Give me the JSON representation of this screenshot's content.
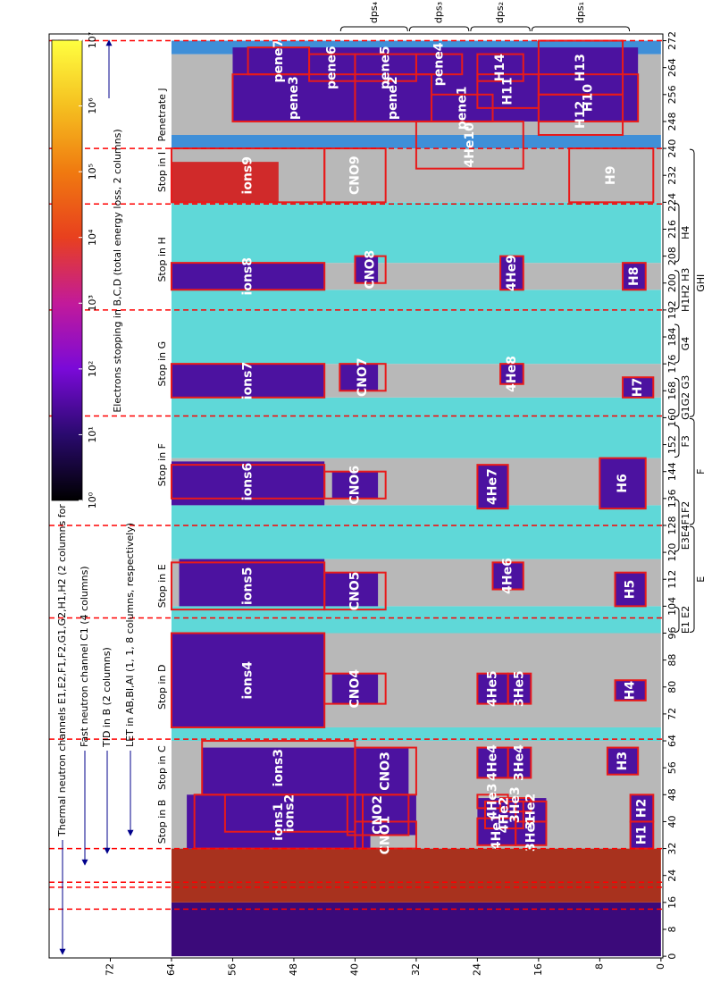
{
  "chart_data": {
    "type": "heatmap",
    "xlim": [
      -0.5,
      274
    ],
    "ylim": [
      -0.25,
      80
    ],
    "xticks": [
      0,
      8,
      16,
      24,
      32,
      40,
      48,
      56,
      64,
      72,
      80,
      88,
      96,
      104,
      112,
      120,
      128,
      136,
      144,
      152,
      160,
      168,
      176,
      184,
      192,
      200,
      208,
      216,
      224,
      232,
      240,
      248,
      256,
      264,
      272
    ],
    "yticks": [
      0,
      8,
      16,
      24,
      32,
      40,
      48,
      56,
      64,
      72
    ],
    "panels": [
      {
        "x": [
          0,
          16
        ],
        "y": [
          0,
          64
        ],
        "color": "#3b0a7a"
      },
      {
        "x": [
          16,
          32
        ],
        "y": [
          0,
          64
        ],
        "color": "#a8321e"
      },
      {
        "x": [
          32,
          64
        ],
        "y": [
          0,
          64
        ],
        "color": "#b8b8b8"
      },
      {
        "x": [
          64,
          68
        ],
        "y": [
          0,
          64
        ],
        "color": "#5fd8d8"
      },
      {
        "x": [
          68,
          96
        ],
        "y": [
          0,
          64
        ],
        "color": "#b8b8b8"
      },
      {
        "x": [
          96,
          104
        ],
        "y": [
          0,
          64
        ],
        "color": "#5fd8d8"
      },
      {
        "x": [
          104,
          118
        ],
        "y": [
          0,
          64
        ],
        "color": "#b8b8b8"
      },
      {
        "x": [
          118,
          134
        ],
        "y": [
          0,
          64
        ],
        "color": "#5fd8d8"
      },
      {
        "x": [
          134,
          148
        ],
        "y": [
          0,
          64
        ],
        "color": "#b8b8b8"
      },
      {
        "x": [
          148,
          166
        ],
        "y": [
          0,
          64
        ],
        "color": "#5fd8d8"
      },
      {
        "x": [
          166,
          176
        ],
        "y": [
          0,
          64
        ],
        "color": "#b8b8b8"
      },
      {
        "x": [
          176,
          198
        ],
        "y": [
          0,
          64
        ],
        "color": "#5fd8d8"
      },
      {
        "x": [
          198,
          206
        ],
        "y": [
          0,
          64
        ],
        "color": "#b8b8b8"
      },
      {
        "x": [
          206,
          224
        ],
        "y": [
          0,
          64
        ],
        "color": "#5fd8d8"
      },
      {
        "x": [
          224,
          240
        ],
        "y": [
          0,
          64
        ],
        "color": "#b8b8b8"
      },
      {
        "x": [
          240,
          244
        ],
        "y": [
          0,
          64
        ],
        "color": "#3f8fd8"
      },
      {
        "x": [
          244,
          268
        ],
        "y": [
          0,
          64
        ],
        "color": "#b8b8b8"
      },
      {
        "x": [
          268,
          272
        ],
        "y": [
          0,
          64
        ],
        "color": "#3f8fd8"
      },
      {
        "x": [
          224,
          236
        ],
        "y": [
          50,
          64
        ],
        "color": "#d02a2a"
      },
      {
        "x": [
          32,
          48
        ],
        "y": [
          38,
          62
        ],
        "color": "#4c12a0"
      },
      {
        "x": [
          48,
          62
        ],
        "y": [
          40,
          60
        ],
        "color": "#4c12a0"
      },
      {
        "x": [
          68,
          96
        ],
        "y": [
          44,
          64
        ],
        "color": "#4c12a0"
      },
      {
        "x": [
          104,
          118
        ],
        "y": [
          44,
          63
        ],
        "color": "#4c12a0"
      },
      {
        "x": [
          134,
          147
        ],
        "y": [
          44,
          64
        ],
        "color": "#4c12a0"
      },
      {
        "x": [
          166,
          176
        ],
        "y": [
          44,
          64
        ],
        "color": "#4c12a0"
      },
      {
        "x": [
          198,
          206
        ],
        "y": [
          44,
          64
        ],
        "color": "#4c12a0"
      },
      {
        "x": [
          36,
          48
        ],
        "y": [
          32,
          41
        ],
        "color": "#4c12a0"
      },
      {
        "x": [
          48,
          62
        ],
        "y": [
          33,
          40
        ],
        "color": "#4c12a0"
      },
      {
        "x": [
          75,
          84
        ],
        "y": [
          37,
          43
        ],
        "color": "#4c12a0"
      },
      {
        "x": [
          104,
          114
        ],
        "y": [
          37,
          44
        ],
        "color": "#4c12a0"
      },
      {
        "x": [
          136,
          144
        ],
        "y": [
          37,
          43
        ],
        "color": "#4c12a0"
      },
      {
        "x": [
          168,
          176
        ],
        "y": [
          37,
          42
        ],
        "color": "#4c12a0"
      },
      {
        "x": [
          200,
          208
        ],
        "y": [
          37,
          40
        ],
        "color": "#4c12a0"
      },
      {
        "x": [
          32,
          48
        ],
        "y": [
          1,
          4
        ],
        "color": "#4c12a0"
      },
      {
        "x": [
          54,
          62
        ],
        "y": [
          3,
          7
        ],
        "color": "#4c12a0"
      },
      {
        "x": [
          76,
          82
        ],
        "y": [
          2,
          6
        ],
        "color": "#4c12a0"
      },
      {
        "x": [
          104,
          114
        ],
        "y": [
          2,
          6
        ],
        "color": "#4c12a0"
      },
      {
        "x": [
          133,
          148
        ],
        "y": [
          2,
          8
        ],
        "color": "#4c12a0"
      },
      {
        "x": [
          166,
          172
        ],
        "y": [
          1,
          5
        ],
        "color": "#4c12a0"
      },
      {
        "x": [
          198,
          206
        ],
        "y": [
          2,
          5
        ],
        "color": "#4c12a0"
      },
      {
        "x": [
          248,
          270
        ],
        "y": [
          3,
          56
        ],
        "color": "#4c12a0"
      },
      {
        "x": [
          33,
          47
        ],
        "y": [
          15,
          24
        ],
        "color": "#4c12a0"
      },
      {
        "x": [
          53,
          62
        ],
        "y": [
          17,
          24
        ],
        "color": "#4c12a0"
      },
      {
        "x": [
          75,
          84
        ],
        "y": [
          17,
          24
        ],
        "color": "#4c12a0"
      },
      {
        "x": [
          109,
          117
        ],
        "y": [
          18,
          22
        ],
        "color": "#4c12a0"
      },
      {
        "x": [
          133,
          146
        ],
        "y": [
          20,
          24
        ],
        "color": "#4c12a0"
      },
      {
        "x": [
          170,
          176
        ],
        "y": [
          18,
          21
        ],
        "color": "#4c12a0"
      },
      {
        "x": [
          198,
          208
        ],
        "y": [
          18,
          21
        ],
        "color": "#4c12a0"
      }
    ],
    "dividers": [
      14,
      20.5,
      22,
      32,
      64.5,
      100.5,
      128,
      160.5,
      192,
      223.5,
      240,
      272
    ],
    "divider_color": "#ff0000",
    "box_color": "#e81a1a",
    "boxes": [
      {
        "label": "ions1",
        "x": [
          32,
          48
        ],
        "y": [
          39,
          61
        ]
      },
      {
        "label": "ions2",
        "x": [
          37,
          48
        ],
        "y": [
          40,
          57
        ]
      },
      {
        "label": "ions3",
        "x": [
          48,
          64
        ],
        "y": [
          40,
          60
        ]
      },
      {
        "label": "CNO1",
        "x": [
          32,
          40
        ],
        "y": [
          32,
          40
        ]
      },
      {
        "label": "CNO2",
        "x": [
          36,
          48
        ],
        "y": [
          33,
          41
        ]
      },
      {
        "label": "CNO3",
        "x": [
          48,
          62
        ],
        "y": [
          32,
          40
        ]
      },
      {
        "label": "4He1",
        "x": [
          33,
          41
        ],
        "y": [
          19,
          24
        ]
      },
      {
        "label": "4He2",
        "x": [
          38,
          46
        ],
        "y": [
          18,
          23
        ]
      },
      {
        "label": "3He1",
        "x": [
          33,
          40
        ],
        "y": [
          15,
          19
        ]
      },
      {
        "label": "3He2",
        "x": [
          40,
          46
        ],
        "y": [
          15,
          19
        ]
      },
      {
        "label": "3He3",
        "x": [
          43,
          47
        ],
        "y": [
          17,
          21
        ]
      },
      {
        "label": "4He3",
        "x": [
          44,
          48
        ],
        "y": [
          20,
          24
        ]
      },
      {
        "label": "4He4",
        "x": [
          53,
          62
        ],
        "y": [
          20,
          24
        ]
      },
      {
        "label": "3He4",
        "x": [
          53,
          62
        ],
        "y": [
          17,
          20
        ]
      },
      {
        "label": "H1",
        "x": [
          32,
          40
        ],
        "y": [
          1,
          4
        ]
      },
      {
        "label": "H2",
        "x": [
          40,
          48
        ],
        "y": [
          1,
          4
        ]
      },
      {
        "label": "H3",
        "x": [
          54,
          62
        ],
        "y": [
          3,
          7
        ]
      },
      {
        "label": "ions4",
        "x": [
          68,
          96
        ],
        "y": [
          44,
          64
        ]
      },
      {
        "label": "CNO4",
        "x": [
          75,
          84
        ],
        "y": [
          36,
          44
        ]
      },
      {
        "label": "4He5",
        "x": [
          75,
          84
        ],
        "y": [
          20,
          24
        ]
      },
      {
        "label": "3He5",
        "x": [
          75,
          84
        ],
        "y": [
          17,
          20
        ]
      },
      {
        "label": "H4",
        "x": [
          76,
          82
        ],
        "y": [
          2,
          6
        ]
      },
      {
        "label": "ions5",
        "x": [
          103,
          117
        ],
        "y": [
          44,
          64
        ]
      },
      {
        "label": "CNO5",
        "x": [
          103,
          114
        ],
        "y": [
          36,
          44
        ]
      },
      {
        "label": "4He6",
        "x": [
          109,
          117
        ],
        "y": [
          18,
          22
        ]
      },
      {
        "label": "H5",
        "x": [
          104,
          114
        ],
        "y": [
          2,
          6
        ]
      },
      {
        "label": "ions6",
        "x": [
          136,
          146
        ],
        "y": [
          44,
          64
        ]
      },
      {
        "label": "CNO6",
        "x": [
          136,
          144
        ],
        "y": [
          36,
          44
        ]
      },
      {
        "label": "4He7",
        "x": [
          133,
          146
        ],
        "y": [
          20,
          24
        ]
      },
      {
        "label": "H6",
        "x": [
          133,
          148
        ],
        "y": [
          2,
          8
        ]
      },
      {
        "label": "ions7",
        "x": [
          166,
          176
        ],
        "y": [
          44,
          64
        ]
      },
      {
        "label": "CNO7",
        "x": [
          168,
          176
        ],
        "y": [
          36,
          42
        ]
      },
      {
        "label": "4He8",
        "x": [
          170,
          176
        ],
        "y": [
          18,
          21
        ]
      },
      {
        "label": "H7",
        "x": [
          166,
          172
        ],
        "y": [
          1,
          5
        ]
      },
      {
        "label": "ions8",
        "x": [
          198,
          206
        ],
        "y": [
          44,
          64
        ]
      },
      {
        "label": "CNO8",
        "x": [
          200,
          208
        ],
        "y": [
          36,
          40
        ]
      },
      {
        "label": "4He9",
        "x": [
          198,
          208
        ],
        "y": [
          18,
          21
        ]
      },
      {
        "label": "H8",
        "x": [
          198,
          206
        ],
        "y": [
          2,
          5
        ]
      },
      {
        "label": "ions9",
        "x": [
          224,
          240
        ],
        "y": [
          44,
          64
        ]
      },
      {
        "label": "CNO9",
        "x": [
          224,
          240
        ],
        "y": [
          36,
          44
        ]
      },
      {
        "label": "4He10",
        "x": [
          234,
          248
        ],
        "y": [
          18,
          32
        ]
      },
      {
        "label": "H9",
        "x": [
          224,
          240
        ],
        "y": [
          1,
          12
        ]
      },
      {
        "label": "pene1",
        "x": [
          248,
          256
        ],
        "y": [
          22,
          30
        ]
      },
      {
        "label": "pene2",
        "x": [
          248,
          262
        ],
        "y": [
          30,
          40
        ]
      },
      {
        "label": "pene3",
        "x": [
          248,
          262
        ],
        "y": [
          40,
          56
        ]
      },
      {
        "label": "pene4",
        "x": [
          262,
          268
        ],
        "y": [
          26,
          32
        ]
      },
      {
        "label": "pene5",
        "x": [
          260,
          268
        ],
        "y": [
          32,
          40
        ]
      },
      {
        "label": "pene6",
        "x": [
          260,
          268
        ],
        "y": [
          40,
          46
        ]
      },
      {
        "label": "pene7",
        "x": [
          262,
          270
        ],
        "y": [
          46,
          54
        ]
      },
      {
        "label": "H10",
        "x": [
          248,
          262
        ],
        "y": [
          3,
          16
        ]
      },
      {
        "label": "H11",
        "x": [
          252,
          262
        ],
        "y": [
          16,
          24
        ]
      },
      {
        "label": "H12",
        "x": [
          244,
          256
        ],
        "y": [
          5,
          16
        ]
      },
      {
        "label": "H13",
        "x": [
          256,
          272
        ],
        "y": [
          5,
          16
        ]
      },
      {
        "label": "H14",
        "x": [
          260,
          268
        ],
        "y": [
          18,
          24
        ]
      }
    ],
    "stop_labels": [
      {
        "label": "Stop in B",
        "x": 40
      },
      {
        "label": "Stop in C",
        "x": 56
      },
      {
        "label": "Stop in D",
        "x": 80
      },
      {
        "label": "Stop in E",
        "x": 110
      },
      {
        "label": "Stop in F",
        "x": 146
      },
      {
        "label": "Stop in G",
        "x": 176
      },
      {
        "label": "Stop in H",
        "x": 207
      },
      {
        "label": "Stop in I",
        "x": 233
      },
      {
        "label": "Penetrate J",
        "x": 250
      }
    ],
    "channel_groups": [
      {
        "label": "E1 E2",
        "x": [
          96,
          104
        ]
      },
      {
        "label": "E3E4F1F2",
        "x": [
          120,
          136
        ]
      },
      {
        "label": "F3",
        "x": [
          148,
          158
        ]
      },
      {
        "label": "G1G2 G3",
        "x": [
          160,
          172
        ]
      },
      {
        "label": "G4",
        "x": [
          176,
          188
        ]
      },
      {
        "label": "H1H2 H3",
        "x": [
          192,
          204
        ]
      },
      {
        "label": "H4",
        "x": [
          206,
          224
        ]
      }
    ],
    "detector_groups": [
      {
        "label": "E",
        "x": [
          96,
          128
        ]
      },
      {
        "label": "F",
        "x": [
          128,
          160
        ]
      },
      {
        "label": "GHI",
        "x": [
          160,
          240
        ]
      }
    ],
    "dps": [
      {
        "label": "dps₁",
        "y": [
          4,
          17
        ]
      },
      {
        "label": "dps₂",
        "y": [
          17,
          25
        ]
      },
      {
        "label": "dps₃",
        "y": [
          25,
          33
        ]
      },
      {
        "label": "dps₄",
        "y": [
          33,
          42
        ]
      }
    ],
    "notes": [
      "Thermal neutron channels E1,E2,F1,F2,G1,G2,H1,H2 (2 columns for each)",
      "Fast neutron channel C1 (4 columns)",
      "TID in B (2 columns)",
      "LET in AB,BI,AI (1, 1, 8 columns, respectively)"
    ],
    "colorbar": {
      "label": "Electrons stopping in B,C,D (total energy loss, 2 columns)",
      "scale": "log",
      "lim": [
        1,
        10000000
      ],
      "ticks": [
        {
          "value": 1,
          "label": "10⁰"
        },
        {
          "value": 10,
          "label": "10¹"
        },
        {
          "value": 100,
          "label": "10²"
        },
        {
          "value": 1000,
          "label": "10³"
        },
        {
          "value": 10000,
          "label": "10⁴"
        },
        {
          "value": 100000,
          "label": "10⁵"
        },
        {
          "value": 1000000,
          "label": "10⁶"
        },
        {
          "value": 10000000,
          "label": "10⁷"
        }
      ],
      "colors": [
        "#000000",
        "#2a0a6e",
        "#7a0ad8",
        "#c21a9a",
        "#e8401e",
        "#f07a10",
        "#f5c020",
        "#ffff40"
      ]
    }
  }
}
